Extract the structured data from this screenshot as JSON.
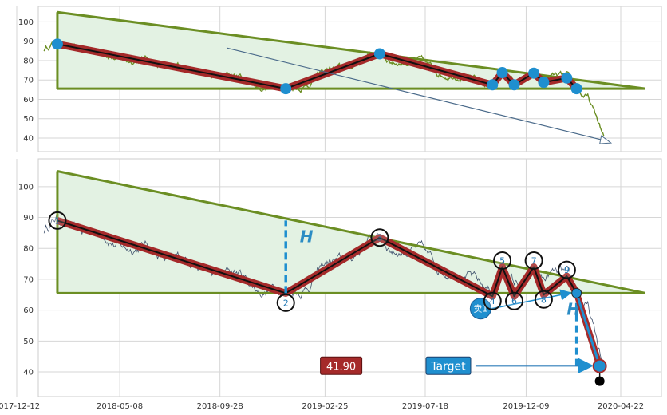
{
  "chart_data": [
    {
      "type": "line",
      "title": "",
      "xlabel": "",
      "ylabel": "",
      "ylim": [
        33,
        108
      ],
      "yticks": [
        40,
        50,
        60,
        70,
        80,
        90,
        100
      ],
      "grid": true,
      "colors": {
        "price": "#6b8e23",
        "pattern": "#a52a2a",
        "boundary": "#6b8e23",
        "fill": "#e3f2e3",
        "marker": "#1f8fcf"
      },
      "series": [
        {
          "values_source": "shared_price_series"
        }
      ],
      "triangle": {
        "top_left": [
          "2018-02-08",
          105
        ],
        "bottom_left": [
          "2018-02-08",
          65.5
        ],
        "apex": [
          "2020-05-27",
          65.5
        ]
      },
      "pivots": [
        {
          "x": "2018-02-08",
          "y": 88.5
        },
        {
          "x": "2018-12-31",
          "y": 65.5
        },
        {
          "x": "2019-05-14",
          "y": 83.5
        },
        {
          "x": "2019-10-22",
          "y": 67.5
        },
        {
          "x": "2019-11-05",
          "y": 73.8
        },
        {
          "x": "2019-11-22",
          "y": 67.5
        },
        {
          "x": "2019-12-20",
          "y": 73.5
        },
        {
          "x": "2020-01-03",
          "y": 68.8
        },
        {
          "x": "2020-02-05",
          "y": 71.0
        },
        {
          "x": "2020-02-19",
          "y": 65.5
        }
      ],
      "arrow": {
        "from": [
          "2018-10-08",
          86.5
        ],
        "to": [
          "2020-04-08",
          37.5
        ]
      }
    },
    {
      "type": "line",
      "title": "",
      "xlabel": "",
      "ylabel": "",
      "ylim": [
        32,
        109
      ],
      "yticks": [
        40,
        50,
        60,
        70,
        80,
        90,
        100
      ],
      "xticks": [
        "2017-12-12",
        "2018-05-08",
        "2018-09-28",
        "2019-02-25",
        "2019-07-18",
        "2019-12-09",
        "2020-04-22"
      ],
      "grid": true,
      "colors": {
        "price": "#3d4f6b",
        "pattern": "#a52a2a",
        "boundary": "#6b8e23",
        "fill": "#e3f2e3",
        "marker": "#1f8fcf",
        "target_box": "#1f8fcf",
        "price_box": "#a52a2a"
      },
      "triangle": {
        "top_left": [
          "2018-02-08",
          105
        ],
        "bottom_left": [
          "2018-02-08",
          65.5
        ],
        "apex": [
          "2020-05-27",
          65.5
        ]
      },
      "pivots": [
        {
          "label": "1",
          "x": "2018-02-08",
          "y": 89.0
        },
        {
          "label": "2",
          "x": "2018-12-31",
          "y": 65.5
        },
        {
          "label": "3",
          "x": "2019-05-14",
          "y": 83.5
        },
        {
          "label": "4",
          "x": "2019-10-22",
          "y": 64.5
        },
        {
          "label": "5",
          "x": "2019-11-05",
          "y": 74.0
        },
        {
          "label": "6",
          "x": "2019-11-22",
          "y": 64.5
        },
        {
          "label": "7",
          "x": "2019-12-20",
          "y": 74.0
        },
        {
          "label": "8",
          "x": "2020-01-03",
          "y": 65.0
        },
        {
          "label": "9",
          "x": "2020-02-05",
          "y": 71.0
        }
      ],
      "breakout": {
        "x": "2020-02-19",
        "y": 65.5
      },
      "target_point": {
        "x": "2020-03-23",
        "y": 41.9
      },
      "sell_marker": {
        "label": "卖1",
        "x": "2019-10-05",
        "y": 60.5
      },
      "height_markers": [
        {
          "label": "H",
          "x_line": "2018-12-31",
          "y_from": 65.5,
          "y_to": 89.0,
          "label_x": "2019-01-20",
          "label_y": 82.0
        },
        {
          "label": "H",
          "x_line": "2020-02-19",
          "y_from": 41.9,
          "y_to": 65.5,
          "label_x": "2020-02-05",
          "label_y": 58.5
        }
      ],
      "target_label": "Target",
      "target_value_label": "41.90",
      "target_label_pos": [
        "2019-08-20",
        42.0
      ],
      "target_value_pos": [
        "2019-03-20",
        42.0
      ]
    }
  ]
}
